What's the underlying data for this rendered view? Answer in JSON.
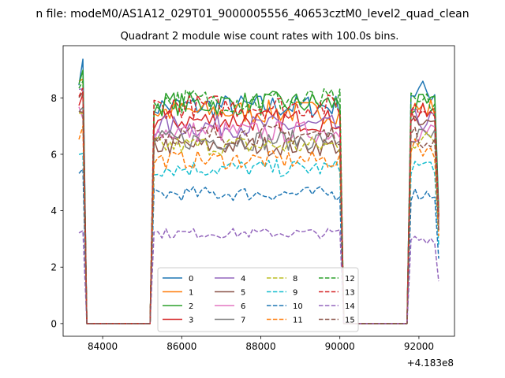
{
  "suptitle": "n file: modeM0/AS1A12_029T01_9000005556_40653cztM0_level2_quad_clean",
  "chart_data": {
    "type": "line",
    "title": "Quadrant 2 module wise count rates with 100.0s bins.",
    "xlabel": "",
    "ylabel": "",
    "offset_label": "+4.183e8",
    "xlim": [
      83000,
      92900
    ],
    "ylim": [
      -0.45,
      9.85
    ],
    "xticks": [
      84000,
      86000,
      88000,
      90000,
      92000
    ],
    "yticks": [
      0,
      2,
      4,
      6,
      8
    ],
    "grid": false,
    "legend": {
      "position": "bottom-center",
      "ncol": 4
    },
    "time_segments": [
      {
        "on_start": 83400,
        "on_end": 83500,
        "off_start": 83600,
        "off_end": 85200
      },
      {
        "on_start": 85300,
        "on_end": 90000,
        "off_start": 90100,
        "off_end": 91700
      },
      {
        "on_start": 91800,
        "on_end": 92400,
        "off_start": 92500,
        "off_end": 92500
      }
    ],
    "series": [
      {
        "name": "0",
        "color": "#1f77b4",
        "dash": "solid",
        "levels": [
          8.95,
          7.7,
          8.2
        ]
      },
      {
        "name": "1",
        "color": "#ff7f0e",
        "dash": "solid",
        "levels": [
          8.8,
          7.5,
          7.6
        ]
      },
      {
        "name": "2",
        "color": "#2ca02c",
        "dash": "solid",
        "levels": [
          8.6,
          7.8,
          7.7
        ]
      },
      {
        "name": "3",
        "color": "#d62728",
        "dash": "solid",
        "levels": [
          8.0,
          7.2,
          7.4
        ]
      },
      {
        "name": "4",
        "color": "#9467bd",
        "dash": "solid",
        "levels": [
          8.4,
          7.0,
          7.2
        ]
      },
      {
        "name": "5",
        "color": "#8c564b",
        "dash": "solid",
        "levels": [
          7.8,
          6.3,
          7.0
        ]
      },
      {
        "name": "6",
        "color": "#e377c2",
        "dash": "solid",
        "levels": [
          7.6,
          6.8,
          6.8
        ]
      },
      {
        "name": "7",
        "color": "#7f7f7f",
        "dash": "solid",
        "levels": [
          7.5,
          6.5,
          6.6
        ]
      },
      {
        "name": "8",
        "color": "#bcbd22",
        "dash": "dashed",
        "levels": [
          7.2,
          6.3,
          6.5
        ]
      },
      {
        "name": "9",
        "color": "#17becf",
        "dash": "dashed",
        "levels": [
          6.1,
          5.5,
          5.6
        ]
      },
      {
        "name": "10",
        "color": "#1f77b4",
        "dash": "dashed",
        "levels": [
          5.2,
          4.6,
          4.6
        ]
      },
      {
        "name": "11",
        "color": "#ff7f0e",
        "dash": "dashed",
        "levels": [
          6.8,
          5.8,
          6.2
        ]
      },
      {
        "name": "12",
        "color": "#2ca02c",
        "dash": "dashed",
        "levels": [
          8.3,
          7.9,
          7.8
        ]
      },
      {
        "name": "13",
        "color": "#d62728",
        "dash": "dashed",
        "levels": [
          8.1,
          7.7,
          7.6
        ]
      },
      {
        "name": "14",
        "color": "#9467bd",
        "dash": "dashed",
        "levels": [
          3.4,
          3.2,
          3.0
        ]
      },
      {
        "name": "15",
        "color": "#8c564b",
        "dash": "dashed",
        "levels": [
          7.5,
          6.7,
          6.6
        ]
      }
    ]
  }
}
